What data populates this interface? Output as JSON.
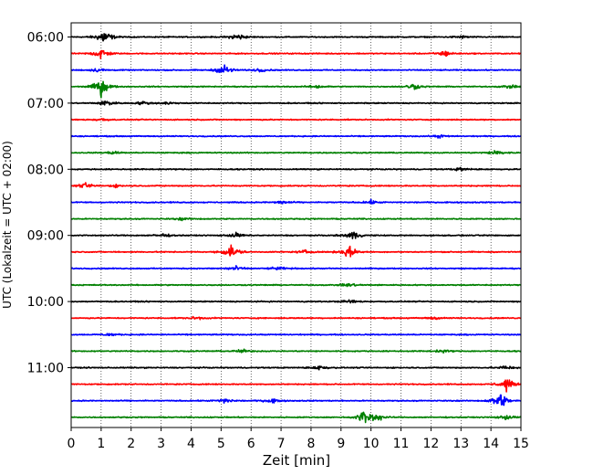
{
  "chart_data": {
    "type": "line",
    "xlabel": "Zeit  [min]",
    "ylabel": "UTC (Lokalzeit = UTC + 02:00)",
    "xlim": [
      0,
      15
    ],
    "x_ticks": [
      0,
      1,
      2,
      3,
      4,
      5,
      6,
      7,
      8,
      9,
      10,
      11,
      12,
      13,
      14,
      15
    ],
    "y_tick_labels": [
      "06:00",
      "07:00",
      "08:00",
      "09:00",
      "10:00",
      "11:00"
    ],
    "y_tick_trace_index": [
      0,
      4,
      8,
      12,
      16,
      20
    ],
    "trace_minutes": 15,
    "grid": "vertical-dotted",
    "colors": [
      "#000000",
      "#ff0000",
      "#0000ff",
      "#008000"
    ],
    "traces": [
      {
        "start": "06:00",
        "events": [
          [
            1.1,
            1.4
          ],
          [
            5.55,
            0.7
          ],
          [
            13.0,
            0.25
          ]
        ]
      },
      {
        "start": "06:15",
        "events": [
          [
            1.0,
            1.1
          ],
          [
            12.45,
            0.6
          ]
        ]
      },
      {
        "start": "06:30",
        "events": [
          [
            5.1,
            1.0
          ],
          [
            0.9,
            0.35
          ],
          [
            6.3,
            0.3
          ]
        ]
      },
      {
        "start": "06:45",
        "events": [
          [
            1.0,
            1.6
          ],
          [
            8.2,
            0.3
          ],
          [
            11.4,
            0.6
          ],
          [
            14.6,
            0.3
          ]
        ]
      },
      {
        "start": "07:00",
        "events": [
          [
            1.2,
            0.6
          ],
          [
            2.4,
            0.3
          ],
          [
            3.2,
            0.25
          ]
        ]
      },
      {
        "start": "07:15",
        "events": [
          [
            1.0,
            0.25
          ]
        ]
      },
      {
        "start": "07:30",
        "events": [
          [
            12.3,
            0.25
          ]
        ]
      },
      {
        "start": "07:45",
        "events": [
          [
            1.4,
            0.3
          ],
          [
            14.2,
            0.55
          ]
        ]
      },
      {
        "start": "08:00",
        "events": [
          [
            13.0,
            0.3
          ]
        ]
      },
      {
        "start": "08:15",
        "events": [
          [
            0.5,
            0.45
          ],
          [
            1.5,
            0.2
          ]
        ]
      },
      {
        "start": "08:30",
        "events": [
          [
            7.0,
            0.35
          ],
          [
            10.0,
            0.3
          ]
        ]
      },
      {
        "start": "08:45",
        "events": [
          [
            3.7,
            0.2
          ]
        ]
      },
      {
        "start": "09:00",
        "events": [
          [
            3.05,
            0.3
          ],
          [
            9.4,
            0.8
          ],
          [
            5.5,
            0.4
          ]
        ]
      },
      {
        "start": "09:15",
        "events": [
          [
            5.35,
            1.3
          ],
          [
            9.25,
            1.2
          ],
          [
            7.8,
            0.3
          ]
        ]
      },
      {
        "start": "09:30",
        "events": [
          [
            6.9,
            0.3
          ],
          [
            5.45,
            0.5
          ]
        ]
      },
      {
        "start": "09:45",
        "events": [
          [
            9.3,
            0.35
          ]
        ]
      },
      {
        "start": "10:00",
        "events": [
          [
            9.3,
            0.3
          ]
        ]
      },
      {
        "start": "10:15",
        "events": [
          [
            4.2,
            0.3
          ],
          [
            12.1,
            0.25
          ]
        ]
      },
      {
        "start": "10:30",
        "events": [
          [
            1.3,
            0.25
          ]
        ]
      },
      {
        "start": "10:45",
        "events": [
          [
            5.7,
            0.3
          ],
          [
            12.4,
            0.25
          ]
        ]
      },
      {
        "start": "11:00",
        "events": [
          [
            8.3,
            0.4
          ],
          [
            14.5,
            0.4
          ]
        ]
      },
      {
        "start": "11:15",
        "events": [
          [
            14.5,
            1.2
          ]
        ]
      },
      {
        "start": "11:30",
        "events": [
          [
            5.1,
            0.5
          ],
          [
            6.7,
            0.4
          ],
          [
            14.3,
            1.6
          ]
        ]
      },
      {
        "start": "11:45",
        "events": [
          [
            9.8,
            1.5
          ],
          [
            10.2,
            0.6
          ],
          [
            14.5,
            0.4
          ]
        ]
      }
    ]
  }
}
